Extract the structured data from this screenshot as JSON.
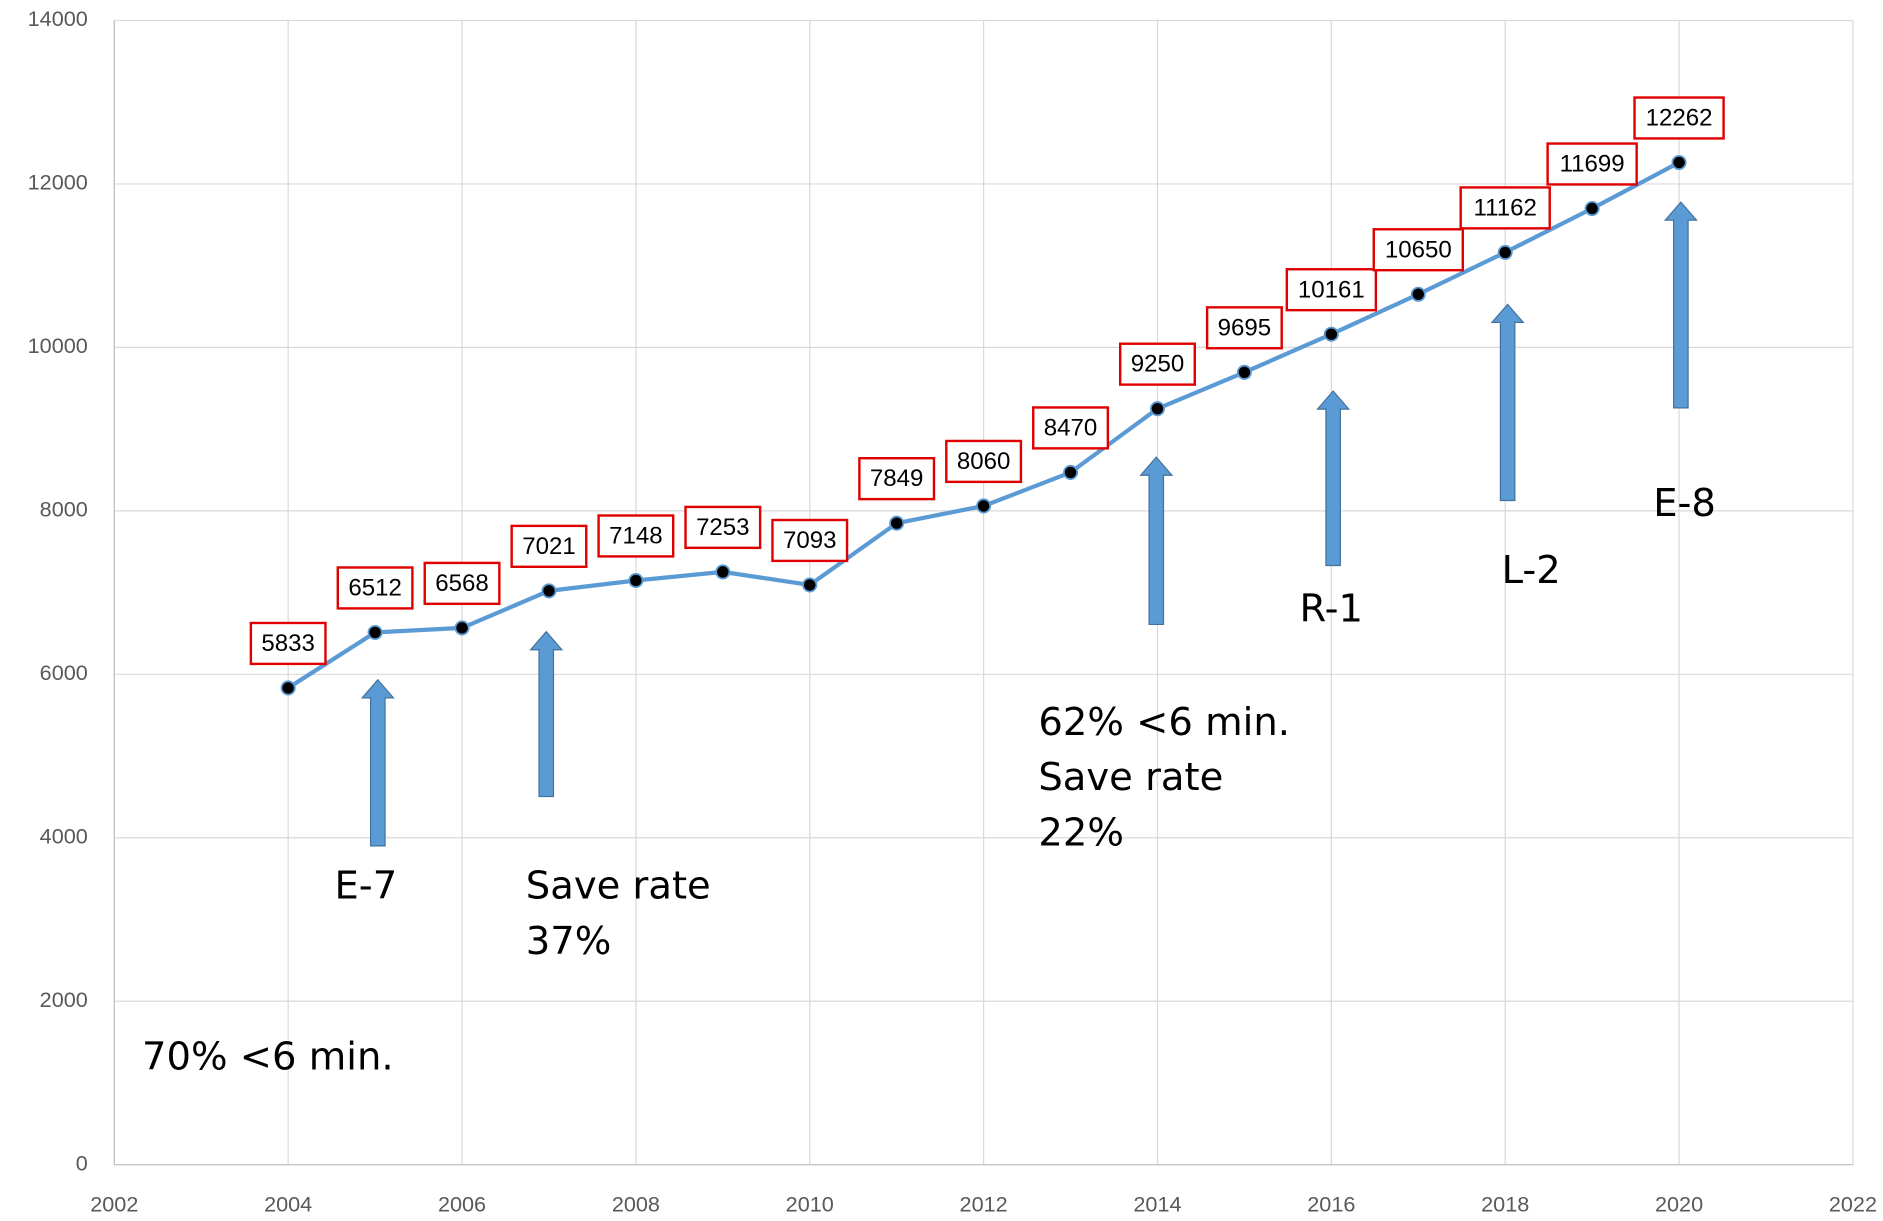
{
  "chart_data": {
    "type": "line",
    "x": [
      2004,
      2005,
      2006,
      2007,
      2008,
      2009,
      2010,
      2011,
      2012,
      2013,
      2014,
      2015,
      2016,
      2017,
      2018,
      2019,
      2020
    ],
    "series": [
      {
        "color": "#5b9bd5",
        "marker_color": "#000000",
        "label_border_color": "#e00000",
        "values": [
          5833,
          6512,
          6568,
          7021,
          7148,
          7253,
          7093,
          7849,
          8060,
          8470,
          9250,
          9695,
          10161,
          10650,
          11162,
          11699,
          12262
        ]
      }
    ],
    "xlim": [
      2002,
      2022
    ],
    "xticks": [
      2002,
      2004,
      2006,
      2008,
      2010,
      2012,
      2014,
      2016,
      2018,
      2020,
      2022
    ],
    "ylim": [
      0,
      14000
    ],
    "yticks": [
      0,
      2000,
      4000,
      6000,
      8000,
      10000,
      12000,
      14000
    ],
    "grid": true,
    "annotations": [
      [
        "70% <6 min."
      ],
      [
        "E-7"
      ],
      [
        "Save rate",
        "37%"
      ],
      [
        "62% <6 min.",
        "Save rate",
        "22%"
      ],
      [
        "R-1"
      ],
      [
        "L-2"
      ],
      [
        "E-8"
      ]
    ]
  }
}
